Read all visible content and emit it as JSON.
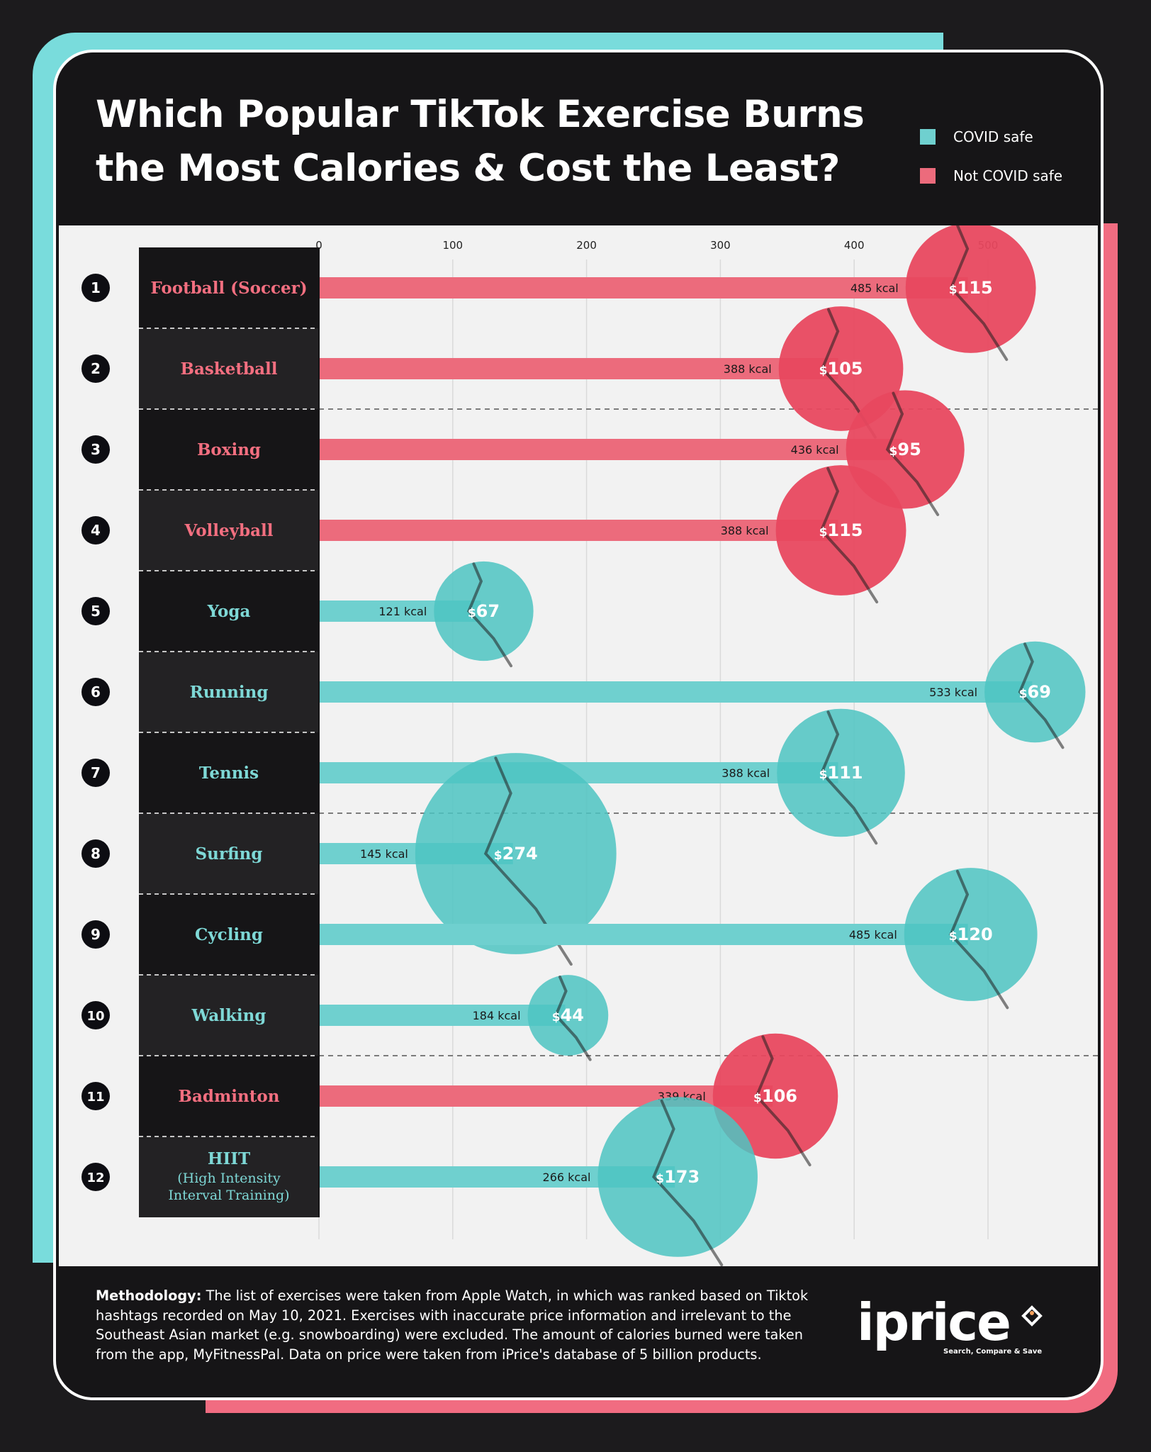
{
  "title": {
    "line1": "Which Popular TikTok Exercise Burns",
    "line2": "the Most Calories & Cost the Least?"
  },
  "legend": [
    {
      "label": "COVID safe",
      "color": "#6fd0cf"
    },
    {
      "label": "Not COVID safe",
      "color": "#ec6b7c"
    }
  ],
  "colors": {
    "covid_safe": "#6fd0cf",
    "not_covid_safe": "#ec6b7c",
    "name_not_safe": "#f36f80",
    "name_safe": "#7ed8d6",
    "teal_accent": "#79dcdc",
    "pink_accent": "#f16c81"
  },
  "chart_data": {
    "type": "bar",
    "orientation": "horizontal",
    "title": "Which Popular TikTok Exercise Burns the Most Calories & Cost the Least?",
    "xlim": [
      0,
      570
    ],
    "xticks": [
      0,
      100,
      200,
      300,
      400,
      500
    ],
    "grid": true,
    "legend_position": "top-right",
    "value_suffix": "kcal",
    "price_prefix": "$",
    "rows": [
      {
        "rank": "1",
        "name": "Football (Soccer)",
        "kcal": 485,
        "kcal_label": "485 kcal",
        "price": 115,
        "price_label": "115",
        "covid_safe": false
      },
      {
        "rank": "2",
        "name": "Basketball",
        "kcal": 388,
        "kcal_label": "388 kcal",
        "price": 105,
        "price_label": "105",
        "covid_safe": false
      },
      {
        "rank": "3",
        "name": "Boxing",
        "kcal": 436,
        "kcal_label": "436 kcal",
        "price": 95,
        "price_label": "95",
        "covid_safe": false
      },
      {
        "rank": "4",
        "name": "Volleyball",
        "kcal": 388,
        "kcal_label": "388 kcal",
        "price": 115,
        "price_label": "115",
        "covid_safe": false
      },
      {
        "rank": "5",
        "name": "Yoga",
        "kcal": 121,
        "kcal_label": "121 kcal",
        "price": 67,
        "price_label": "67",
        "covid_safe": true
      },
      {
        "rank": "6",
        "name": "Running",
        "kcal": 533,
        "kcal_label": "533 kcal",
        "price": 69,
        "price_label": "69",
        "covid_safe": true
      },
      {
        "rank": "7",
        "name": "Tennis",
        "kcal": 388,
        "kcal_label": "388 kcal",
        "price": 111,
        "price_label": "111",
        "covid_safe": true
      },
      {
        "rank": "8",
        "name": "Surfing",
        "kcal": 145,
        "kcal_label": "145 kcal",
        "price": 274,
        "price_label": "274",
        "covid_safe": true
      },
      {
        "rank": "9",
        "name": "Cycling",
        "kcal": 485,
        "kcal_label": "485 kcal",
        "price": 120,
        "price_label": "120",
        "covid_safe": true
      },
      {
        "rank": "10",
        "name": "Walking",
        "kcal": 184,
        "kcal_label": "184 kcal",
        "price": 44,
        "price_label": "44",
        "covid_safe": true
      },
      {
        "rank": "11",
        "name": "Badminton",
        "kcal": 339,
        "kcal_label": "339 kcal",
        "price": 106,
        "price_label": "106",
        "covid_safe": false
      },
      {
        "rank": "12",
        "name": "HIIT",
        "subname": [
          "(High Intensity",
          "Interval Training)"
        ],
        "kcal": 266,
        "kcal_label": "266 kcal",
        "price": 173,
        "price_label": "173",
        "covid_safe": true
      }
    ]
  },
  "footer": {
    "label": "Methodology:",
    "text": " The list of exercises were taken from Apple Watch, in which was ranked based on Tiktok hashtags recorded on May 10, 2021. Exercises with inaccurate price information and irrelevant to the Southeast Asian market (e.g. snowboarding) were excluded. The amount of calories burned were taken from the app, MyFitnessPal. Data on price were taken from iPrice's database of 5 billion products."
  },
  "logo": {
    "word": "iprice",
    "tagline": "Search, Compare & Save",
    "mark_color": "#f6a05a"
  }
}
